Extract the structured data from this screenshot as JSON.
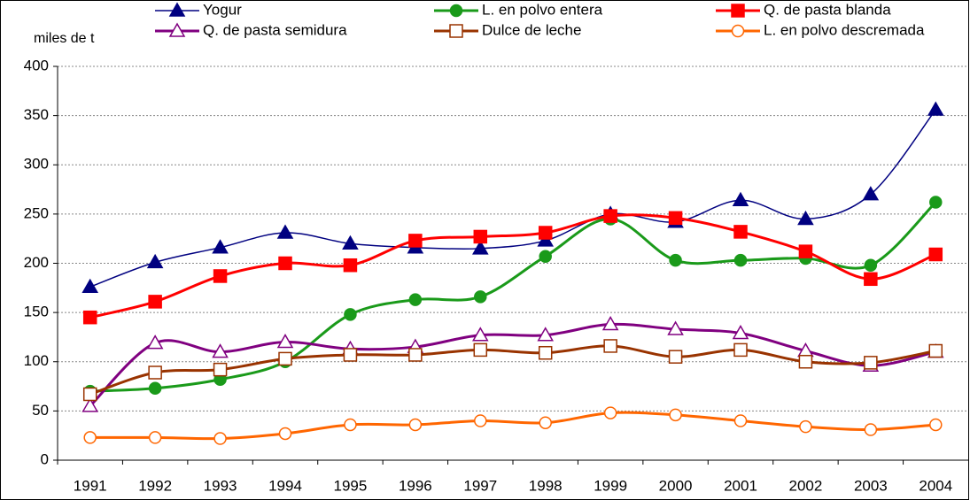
{
  "chart_data": {
    "type": "line",
    "y_label": "miles de t",
    "categories": [
      "1991",
      "1992",
      "1993",
      "1994",
      "1995",
      "1996",
      "1997",
      "1998",
      "1999",
      "2000",
      "2001",
      "2002",
      "2003",
      "2004"
    ],
    "ylim": [
      0,
      400
    ],
    "yticks": [
      0,
      50,
      100,
      150,
      200,
      250,
      300,
      350,
      400
    ],
    "grid": true,
    "smooth": true,
    "series": [
      {
        "name": "Yogur",
        "color": "#000080",
        "marker": "triangle",
        "filled": true,
        "values": [
          176,
          201,
          216,
          231,
          220,
          216,
          215,
          223,
          250,
          242,
          264,
          245,
          270,
          356
        ]
      },
      {
        "name": "L. en polvo entera",
        "color": "#1a9a1a",
        "marker": "circle",
        "filled": true,
        "values": [
          70,
          73,
          82,
          100,
          148,
          163,
          166,
          207,
          245,
          203,
          203,
          205,
          198,
          262
        ]
      },
      {
        "name": "Q. de pasta blanda",
        "color": "#ff0000",
        "marker": "square",
        "filled": true,
        "values": [
          145,
          161,
          187,
          200,
          198,
          223,
          227,
          231,
          248,
          246,
          232,
          212,
          184,
          209
        ]
      },
      {
        "name": "Q. de pasta semidura",
        "color": "#800080",
        "marker": "triangle",
        "filled": false,
        "values": [
          55,
          119,
          110,
          120,
          113,
          115,
          127,
          127,
          138,
          133,
          129,
          111,
          96,
          110
        ]
      },
      {
        "name": "Dulce de leche",
        "color": "#993300",
        "marker": "square",
        "filled": false,
        "values": [
          67,
          89,
          92,
          103,
          107,
          107,
          112,
          109,
          116,
          105,
          112,
          100,
          99,
          111
        ]
      },
      {
        "name": "L. en polvo descremada",
        "color": "#ff6600",
        "marker": "circle",
        "filled": false,
        "values": [
          23,
          23,
          22,
          27,
          36,
          36,
          40,
          38,
          48,
          46,
          40,
          34,
          31,
          36
        ]
      }
    ]
  }
}
